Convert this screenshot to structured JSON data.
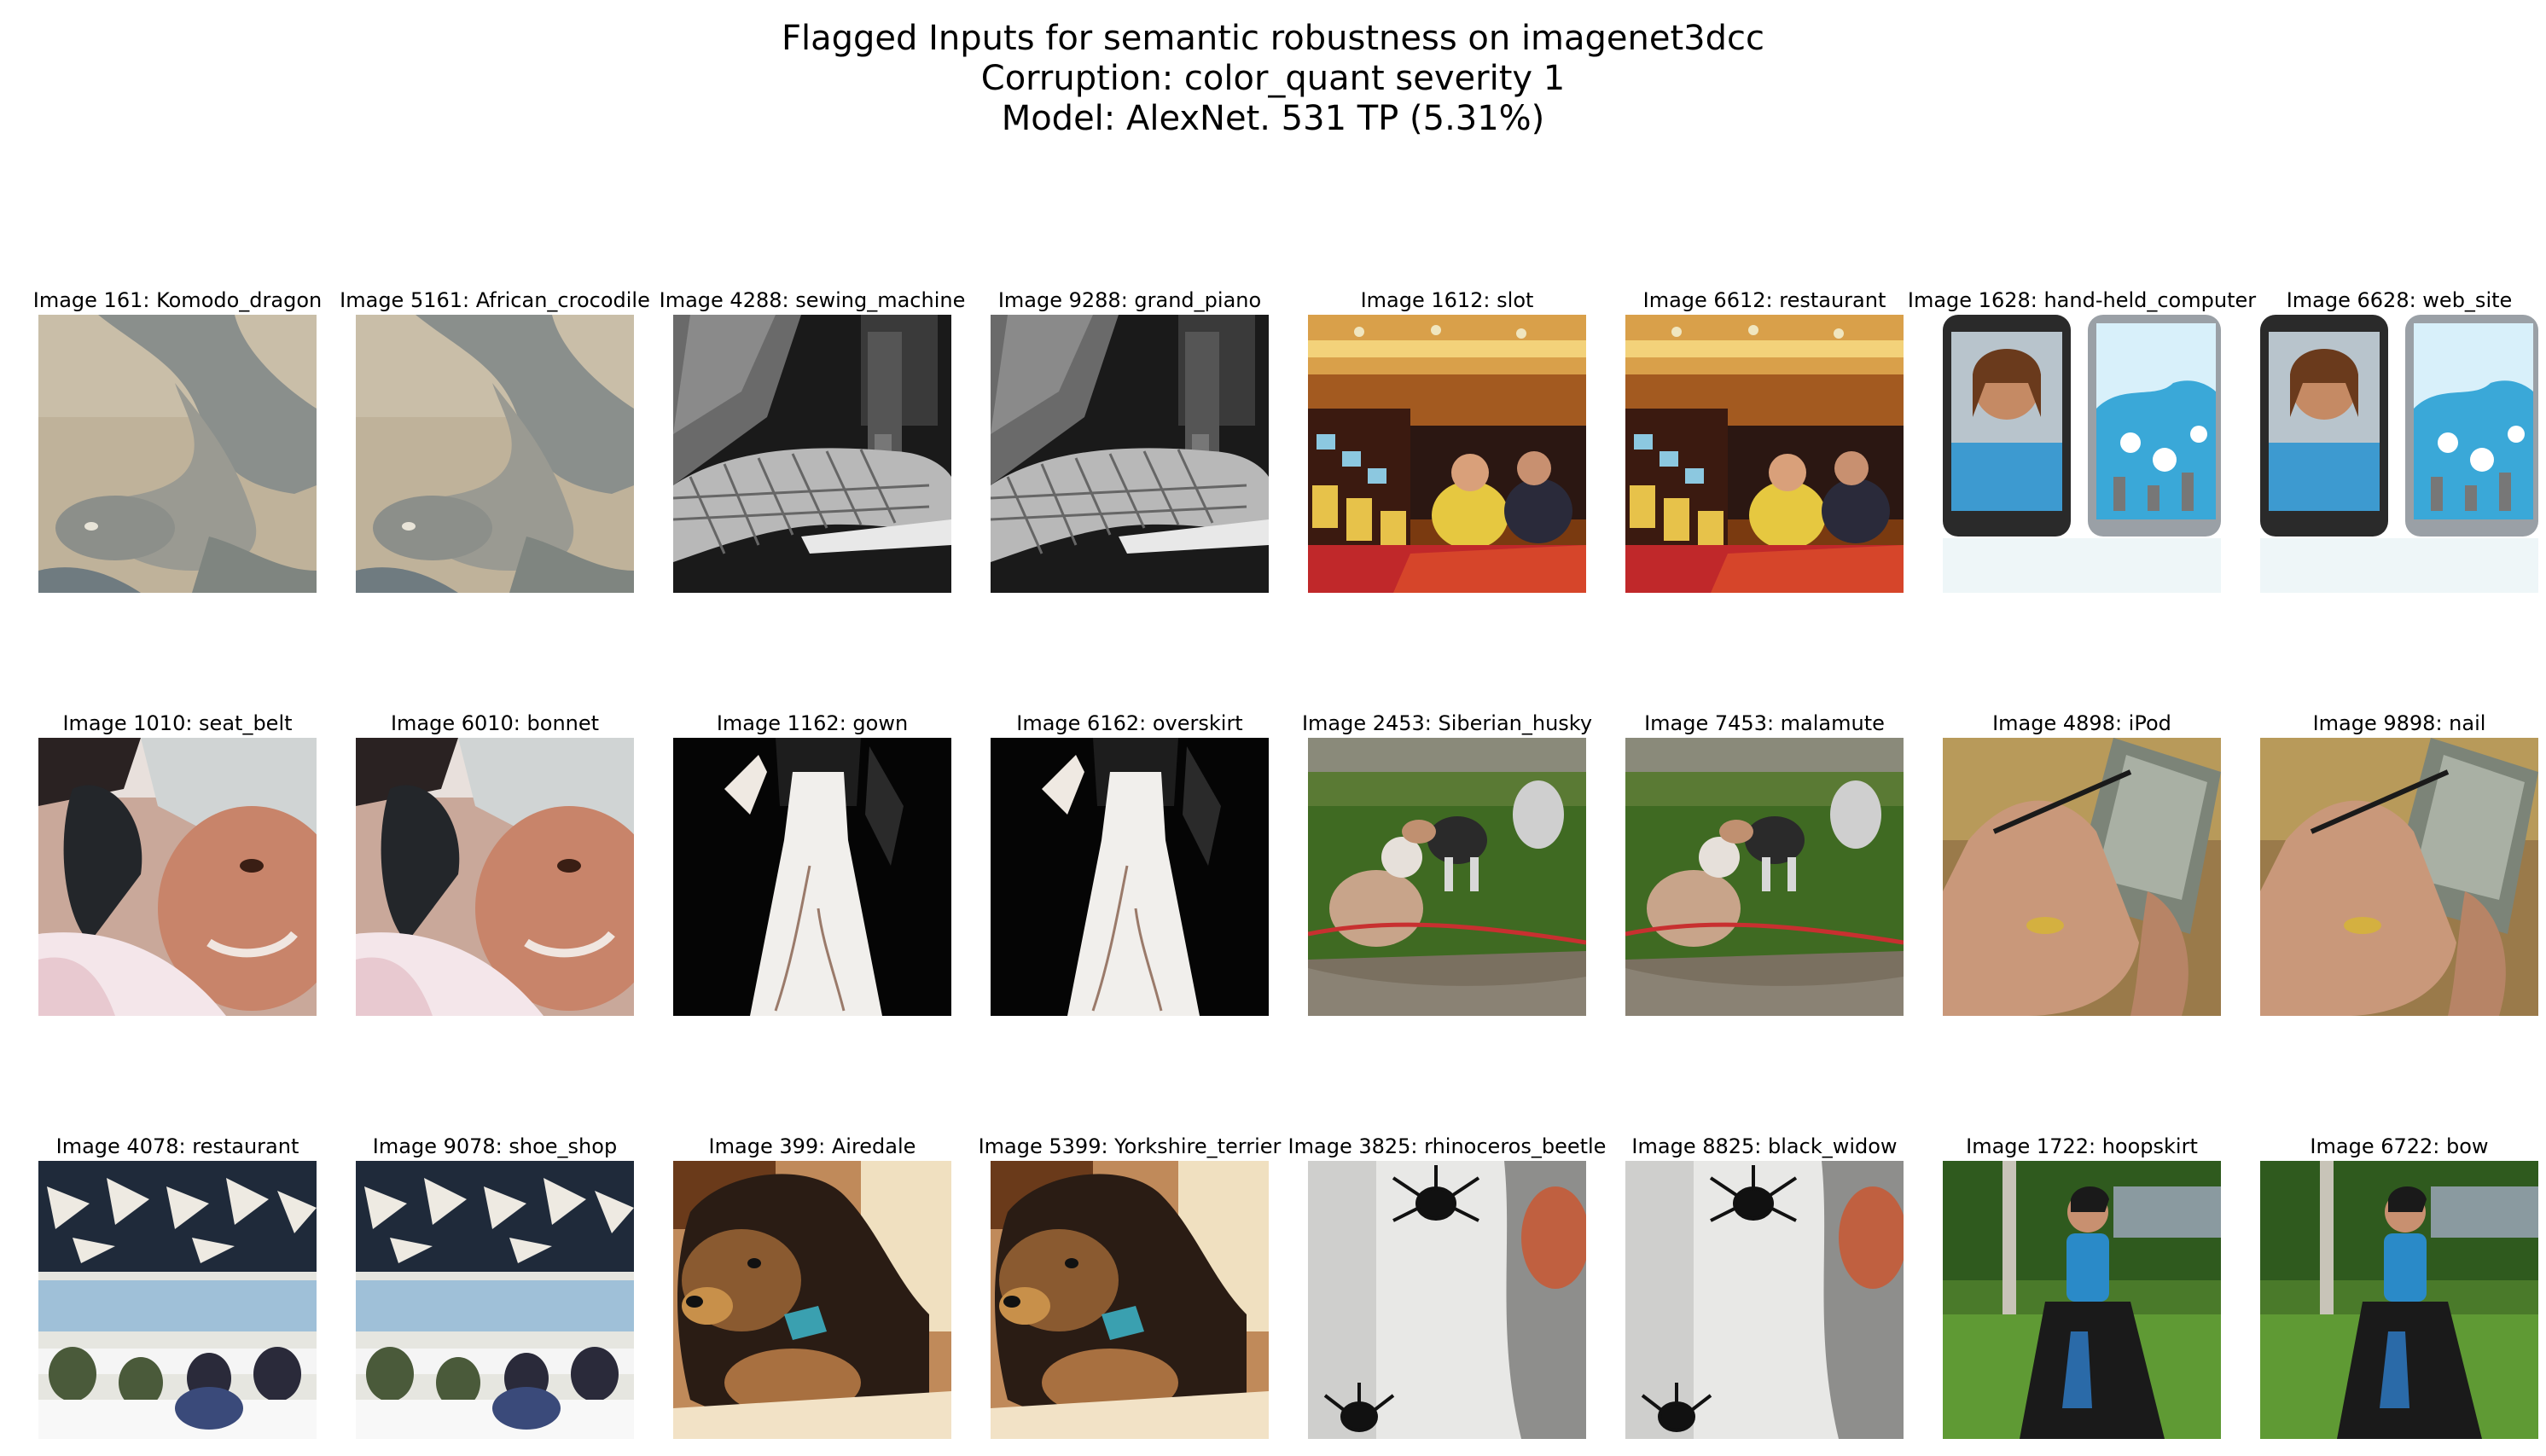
{
  "title_lines": [
    "Flagged Inputs for semantic robustness on imagenet3dcc",
    "Corruption: color_quant severity 1",
    "Model: AlexNet. 531 TP (5.31%)"
  ],
  "grid": [
    [
      {
        "label": "Image 161: Komodo_dragon",
        "scene": "lizard"
      },
      {
        "label": "Image 5161: African_crocodile",
        "scene": "lizard"
      },
      {
        "label": "Image 4288: sewing_machine",
        "scene": "sewing"
      },
      {
        "label": "Image 9288: grand_piano",
        "scene": "sewing"
      },
      {
        "label": "Image 1612: slot",
        "scene": "casino"
      },
      {
        "label": "Image 6612: restaurant",
        "scene": "casino"
      },
      {
        "label": "Image 1628: hand-held_computer",
        "scene": "phones"
      },
      {
        "label": "Image 6628: web_site",
        "scene": "phones"
      }
    ],
    [
      {
        "label": "Image 1010: seat_belt",
        "scene": "girl-hat"
      },
      {
        "label": "Image 6010: bonnet",
        "scene": "girl-hat"
      },
      {
        "label": "Image 1162: gown",
        "scene": "dress"
      },
      {
        "label": "Image 6162: overskirt",
        "scene": "dress"
      },
      {
        "label": "Image 2453: Siberian_husky",
        "scene": "huskies"
      },
      {
        "label": "Image 7453: malamute",
        "scene": "huskies"
      },
      {
        "label": "Image 4898: iPod",
        "scene": "hand-device"
      },
      {
        "label": "Image 9898: nail",
        "scene": "hand-device"
      }
    ],
    [
      {
        "label": "Image 4078: restaurant",
        "scene": "dining-hall"
      },
      {
        "label": "Image 9078: shoe_shop",
        "scene": "dining-hall"
      },
      {
        "label": "Image 399: Airedale",
        "scene": "puppy"
      },
      {
        "label": "Image 5399: Yorkshire_terrier",
        "scene": "puppy"
      },
      {
        "label": "Image 3825: rhinoceros_beetle",
        "scene": "beetle"
      },
      {
        "label": "Image 8825: black_widow",
        "scene": "beetle"
      },
      {
        "label": "Image 1722: hoopskirt",
        "scene": "woman-park"
      },
      {
        "label": "Image 6722: bow",
        "scene": "woman-park"
      }
    ]
  ]
}
